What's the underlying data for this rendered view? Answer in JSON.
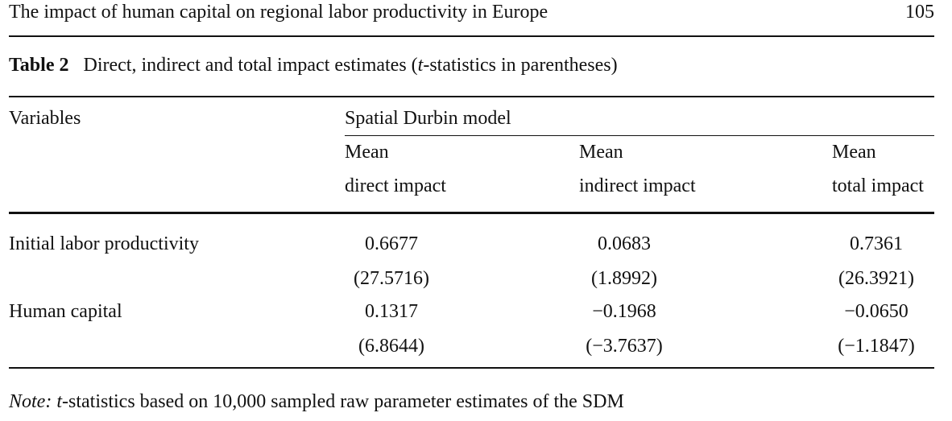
{
  "header": {
    "running_title": "The impact of human capital on regional labor productivity in Europe",
    "page_number": "105"
  },
  "table": {
    "label": "Table 2",
    "caption_pre": "Direct, indirect and total impact estimates (",
    "caption_t": "t",
    "caption_post": "-statistics in parentheses)",
    "variables_header": "Variables",
    "model_header": "Spatial Durbin model",
    "columns": [
      {
        "line1": "Mean",
        "line2": "direct impact"
      },
      {
        "line1": "Mean",
        "line2": "indirect impact"
      },
      {
        "line1": "Mean",
        "line2": "total impact"
      }
    ],
    "rows": [
      {
        "label": "Initial labor productivity",
        "values": [
          "0.6677",
          "0.0683",
          "0.7361"
        ],
        "tstats": [
          "(27.5716)",
          "(1.8992)",
          "(26.3921)"
        ]
      },
      {
        "label": "Human capital",
        "values": [
          "0.1317",
          "−0.1968",
          "−0.0650"
        ],
        "tstats": [
          "(6.8644)",
          "(−3.7637)",
          "(−1.1847)"
        ]
      }
    ]
  },
  "note": {
    "label": "Note:",
    "t": "t",
    "text": "-statistics based on 10,000 sampled raw parameter estimates of the SDM"
  }
}
